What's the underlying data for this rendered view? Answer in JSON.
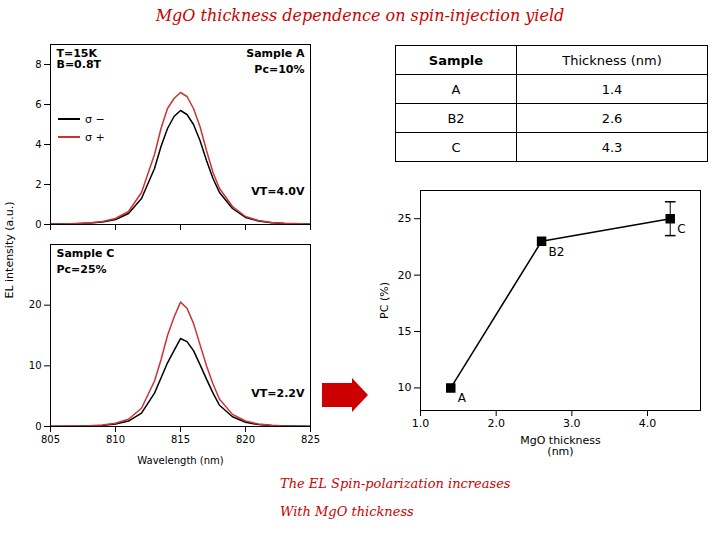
{
  "chart_data": [
    {
      "type": "line",
      "title": {
        "text": "MgO thickness dependence on spin-injection yield",
        "color": "#cc0000"
      },
      "ylabel": "EL intensity (a.u.)",
      "x": [
        805,
        806,
        807,
        808,
        809,
        810,
        811,
        812,
        813,
        813.5,
        814,
        814.5,
        815,
        815.5,
        816,
        816.5,
        817,
        817.5,
        818,
        819,
        820,
        821,
        822,
        823,
        825
      ],
      "series": [
        {
          "name": "σ −",
          "color": "#000000",
          "values": [
            0.02,
            0.03,
            0.04,
            0.07,
            0.13,
            0.25,
            0.55,
            1.3,
            2.8,
            3.9,
            4.8,
            5.4,
            5.7,
            5.5,
            5.0,
            4.2,
            3.2,
            2.3,
            1.6,
            0.8,
            0.35,
            0.18,
            0.09,
            0.05,
            0.02
          ]
        },
        {
          "name": "σ +",
          "color": "#cc3333",
          "values": [
            0.02,
            0.03,
            0.05,
            0.08,
            0.15,
            0.3,
            0.65,
            1.6,
            3.5,
            4.8,
            5.8,
            6.3,
            6.6,
            6.4,
            5.8,
            4.9,
            3.7,
            2.6,
            1.8,
            0.9,
            0.4,
            0.2,
            0.1,
            0.06,
            0.02
          ]
        }
      ],
      "xlim": [
        805,
        825
      ],
      "xticks": [
        805,
        810,
        815,
        820,
        825
      ],
      "ylim": [
        0,
        9
      ],
      "yticks": [
        0,
        2,
        4,
        6,
        8
      ],
      "tick_labels": "y",
      "legend": "center left",
      "annotations": [
        "Sample A",
        "Pc=10%",
        "T=15K\nB=0.8T",
        "VT=4.0V"
      ]
    },
    {
      "type": "line",
      "xlabel": "Wavelength (nm)",
      "x": [
        805,
        806,
        807,
        808,
        809,
        810,
        811,
        812,
        813,
        813.5,
        814,
        814.5,
        815,
        815.5,
        816,
        816.5,
        817,
        817.5,
        818,
        819,
        820,
        821,
        822,
        823,
        825
      ],
      "series": [
        {
          "name": "σ −",
          "color": "#000000",
          "values": [
            0.03,
            0.04,
            0.06,
            0.1,
            0.18,
            0.4,
            0.9,
            2.2,
            5.5,
            8.0,
            10.5,
            12.5,
            14.5,
            14.0,
            12.5,
            10.2,
            7.8,
            5.5,
            3.5,
            1.6,
            0.7,
            0.32,
            0.15,
            0.08,
            0.03
          ]
        },
        {
          "name": "σ +",
          "color": "#cc3333",
          "values": [
            0.04,
            0.05,
            0.08,
            0.13,
            0.24,
            0.55,
            1.2,
            3.0,
            7.5,
            11.0,
            15.0,
            18.0,
            20.5,
            19.5,
            17.0,
            13.5,
            10.0,
            7.0,
            4.5,
            2.0,
            0.9,
            0.4,
            0.19,
            0.1,
            0.04
          ]
        }
      ],
      "xlim": [
        805,
        825
      ],
      "xticks": [
        805,
        810,
        815,
        820,
        825
      ],
      "ylim": [
        0,
        30
      ],
      "yticks": [
        0,
        10,
        20
      ],
      "annotations": [
        "Sample C",
        "Pc=25%",
        "VT=2.2V"
      ]
    },
    {
      "type": "table",
      "columns": [
        "Sample",
        "Thickness (nm)"
      ],
      "rows": [
        [
          "A",
          "1.4"
        ],
        [
          "B2",
          "2.6"
        ],
        [
          "C",
          "4.3"
        ]
      ]
    },
    {
      "type": "line",
      "marker": "square",
      "color": "#000000",
      "x": [
        1.4,
        2.6,
        4.3
      ],
      "values": [
        10.0,
        23.0,
        25.0
      ],
      "errors": [
        0.0,
        0.0,
        1.5
      ],
      "labels": [
        "A",
        "B2",
        "C"
      ],
      "xlabel": "MgO thickness\n(nm)",
      "ylabel": "PC (%)",
      "xlim": [
        1.0,
        4.7
      ],
      "xticks": [
        1,
        2,
        3,
        4
      ],
      "ylim": [
        8.0,
        27.5
      ],
      "yticks": [
        10,
        15,
        20,
        25
      ],
      "annotations": [
        {
          "text": "The EL Spin-polarization increases",
          "color": "#cc0000"
        },
        {
          "text": "With MgO thickness",
          "color": "#cc0000"
        },
        {
          "shape": "arrow",
          "color": "#cc0000"
        }
      ]
    }
  ]
}
